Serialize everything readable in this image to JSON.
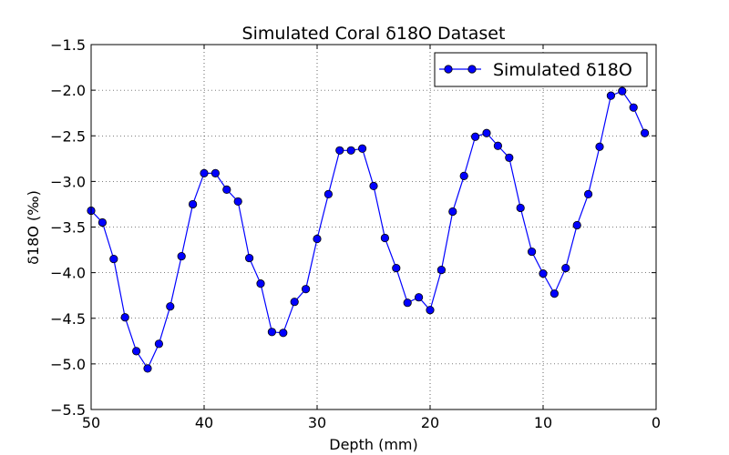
{
  "chart_data": {
    "type": "line",
    "title": "Simulated Coral δ18O Dataset",
    "xlabel": "Depth (mm)",
    "ylabel": "δ18O (‰)",
    "xlim": [
      50,
      0
    ],
    "ylim": [
      -5.5,
      -1.5
    ],
    "x_inverted": true,
    "xticks": [
      50,
      40,
      30,
      20,
      10,
      0
    ],
    "xtick_labels": [
      "50",
      "40",
      "30",
      "20",
      "10",
      "0"
    ],
    "yticks": [
      -1.5,
      -2.0,
      -2.5,
      -3.0,
      -3.5,
      -4.0,
      -4.5,
      -5.0,
      -5.5
    ],
    "ytick_labels": [
      "−1.5",
      "−2.0",
      "−2.5",
      "−3.0",
      "−3.5",
      "−4.0",
      "−4.5",
      "−5.0",
      "−5.5"
    ],
    "grid": true,
    "legend_position": "top-right",
    "series": [
      {
        "name": "Simulated δ18O",
        "color": "#0000ff",
        "marker": "circle",
        "x": [
          50,
          49,
          48,
          47,
          46,
          45,
          44,
          43,
          42,
          41,
          40,
          39,
          38,
          37,
          36,
          35,
          34,
          33,
          32,
          31,
          30,
          29,
          28,
          27,
          26,
          25,
          24,
          23,
          22,
          21,
          20,
          19,
          18,
          17,
          16,
          15,
          14,
          13,
          12,
          11,
          10,
          9,
          8,
          7,
          6,
          5,
          4,
          3,
          2,
          1
        ],
        "y": [
          -3.32,
          -3.45,
          -3.85,
          -4.49,
          -4.86,
          -5.05,
          -4.78,
          -4.37,
          -3.82,
          -3.25,
          -2.91,
          -2.91,
          -3.09,
          -3.22,
          -3.84,
          -4.12,
          -4.65,
          -4.66,
          -4.32,
          -4.18,
          -3.63,
          -3.14,
          -2.66,
          -2.66,
          -2.64,
          -3.05,
          -3.62,
          -3.95,
          -4.33,
          -4.27,
          -4.41,
          -3.97,
          -3.33,
          -2.94,
          -2.51,
          -2.47,
          -2.61,
          -2.74,
          -3.29,
          -3.77,
          -4.01,
          -4.23,
          -3.95,
          -3.48,
          -3.14,
          -2.62,
          -2.06,
          -2.01,
          -2.19,
          -2.47
        ]
      }
    ]
  }
}
